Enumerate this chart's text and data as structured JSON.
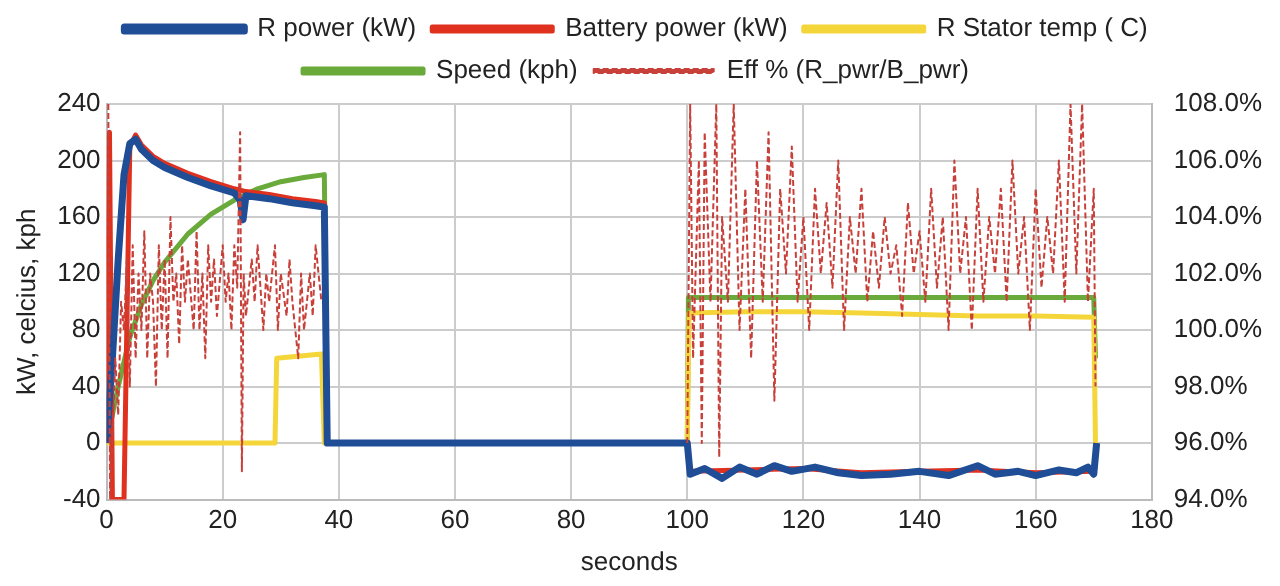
{
  "chart_data": {
    "type": "line",
    "xlabel": "seconds",
    "ylabel": "kW, celcius, kph",
    "xlim": [
      0,
      180
    ],
    "xticks": [
      0,
      20,
      40,
      60,
      80,
      100,
      120,
      140,
      160,
      180
    ],
    "ylim": [
      -40,
      240
    ],
    "yticks": [
      -40,
      0,
      40,
      80,
      120,
      160,
      200,
      240
    ],
    "y2lim": [
      94,
      108
    ],
    "y2ticks": [
      {
        "value": 94,
        "label": "94.0%"
      },
      {
        "value": 96,
        "label": "96.0%"
      },
      {
        "value": 98,
        "label": "98.0%"
      },
      {
        "value": 100,
        "label": "100.0%"
      },
      {
        "value": 102,
        "label": "102.0%"
      },
      {
        "value": 104,
        "label": "104.0%"
      },
      {
        "value": 106,
        "label": "106.0%"
      },
      {
        "value": 108,
        "label": "108.0%"
      }
    ],
    "grid": true,
    "legend": "top",
    "marker": "none",
    "series": [
      {
        "name": "R power (kW)",
        "color": "#1f4e96",
        "line_style": "solid",
        "x": [
          0,
          1,
          2,
          3,
          4,
          5,
          6,
          8,
          10,
          14,
          18,
          22,
          23,
          23.5,
          24,
          28,
          32,
          36,
          37.5,
          38,
          100,
          100.5,
          103,
          106,
          109,
          112,
          115,
          118,
          122,
          126,
          130,
          135,
          140,
          145,
          150,
          153,
          157,
          160,
          164,
          167,
          169,
          170,
          170.5
        ],
        "values": [
          0,
          60,
          130,
          190,
          212,
          215,
          208,
          200,
          195,
          188,
          182,
          177,
          172,
          158,
          175,
          173,
          170,
          168,
          167,
          0,
          0,
          -22,
          -18,
          -25,
          -17,
          -22,
          -16,
          -20,
          -17,
          -21,
          -23,
          -22,
          -20,
          -23,
          -16,
          -22,
          -20,
          -23,
          -19,
          -21,
          -17,
          -22,
          0
        ]
      },
      {
        "name": "Battery power (kW)",
        "color": "#e0301e",
        "line_style": "solid",
        "x": [
          0,
          0.5,
          1,
          3,
          4,
          5,
          6,
          8,
          10,
          14,
          18,
          22,
          24,
          28,
          32,
          36,
          37.5,
          38,
          100,
          100.5,
          110,
          120,
          130,
          140,
          150,
          160,
          170,
          170.5
        ],
        "values": [
          0,
          220,
          -40,
          -40,
          210,
          218,
          211,
          203,
          198,
          191,
          185,
          180,
          178,
          176,
          173,
          171,
          170,
          0,
          0,
          -20,
          -19,
          -18,
          -21,
          -20,
          -19,
          -21,
          -20,
          0
        ]
      },
      {
        "name": "R Stator temp ( C)",
        "color": "#f5d63a",
        "line_style": "solid",
        "x": [
          0,
          29,
          29.3,
          37,
          37.5,
          100,
          100.3,
          110,
          120,
          130,
          140,
          150,
          160,
          170,
          170.3
        ],
        "values": [
          0,
          0,
          60,
          63,
          0,
          0,
          92,
          93,
          93,
          92,
          91,
          90,
          90,
          89,
          0
        ]
      },
      {
        "name": "Speed (kph)",
        "color": "#6aaa3a",
        "line_style": "solid",
        "x": [
          0,
          2,
          4,
          6,
          8,
          10,
          14,
          18,
          22,
          26,
          30,
          34,
          37.5,
          38,
          100,
          100.2,
          170,
          170.3
        ],
        "values": [
          0,
          40,
          75,
          98,
          115,
          128,
          148,
          162,
          172,
          180,
          185,
          188,
          190,
          0,
          0,
          103,
          103,
          60
        ]
      },
      {
        "name": "Eff % (R_pwr/B_pwr)",
        "color": "#c8403a",
        "line_style": "dashed",
        "axis": "y2",
        "x": [
          0.3,
          0.6,
          1,
          1.5,
          2,
          2.5,
          3,
          3.5,
          4,
          4.5,
          5,
          5.5,
          6,
          6.5,
          7,
          7.5,
          8,
          8.5,
          9,
          9.5,
          10,
          10.5,
          11,
          11.5,
          12,
          12.5,
          13,
          13.5,
          14,
          15,
          15.5,
          16,
          16.5,
          17,
          17.5,
          18,
          18.5,
          19,
          20,
          20.5,
          21,
          21.5,
          22,
          22.5,
          23,
          23.3,
          23.6,
          24,
          25,
          25.5,
          26,
          27,
          27.5,
          28,
          29,
          29.5,
          30,
          31,
          31.5,
          32,
          33,
          33.5,
          34,
          35,
          35.5,
          36,
          37,
          38,
          100,
          100.5,
          101,
          102,
          102.5,
          103,
          104,
          105,
          105.5,
          106,
          107,
          108,
          109,
          110,
          111,
          112,
          113,
          114,
          115,
          116,
          117,
          118,
          119,
          120,
          121,
          122,
          123,
          124,
          125,
          126,
          127,
          128,
          129,
          130,
          131,
          132,
          133,
          134,
          135,
          136,
          137,
          138,
          139,
          140,
          141,
          142,
          143,
          144,
          145,
          146,
          147,
          148,
          149,
          150,
          151,
          152,
          153,
          154,
          155,
          156,
          157,
          158,
          159,
          160,
          161,
          162,
          163,
          164,
          165,
          166,
          167,
          168,
          169,
          170,
          170.3
        ],
        "values": [
          108,
          94,
          96,
          99,
          97,
          101,
          100,
          102.5,
          98,
          103,
          99,
          102,
          100,
          103.5,
          99,
          102,
          101,
          98,
          103,
          100,
          102.5,
          99,
          104,
          101,
          102,
          99.5,
          103,
          101,
          102.5,
          100,
          103.5,
          100,
          102,
          99,
          103,
          101,
          102.5,
          100.5,
          103,
          101,
          102,
          100,
          103,
          101.5,
          107,
          95,
          102,
          100.5,
          102.5,
          101,
          103,
          100,
          102,
          101,
          103,
          100,
          102,
          100.5,
          102.5,
          101,
          99,
          102,
          100,
          102,
          100.5,
          103,
          101,
          null,
          96,
          108,
          99,
          106,
          96,
          107,
          101,
          108,
          95.5,
          104,
          101,
          108,
          100,
          105,
          99,
          106,
          101,
          107,
          97.5,
          105,
          102,
          106.5,
          101,
          104,
          100,
          105,
          102,
          104.5,
          101.5,
          106,
          100,
          104,
          102,
          105,
          101,
          103.5,
          101.5,
          104,
          102,
          103,
          100.5,
          104.5,
          102,
          103.5,
          101,
          105,
          101.5,
          104,
          100,
          106,
          102,
          104,
          100,
          105,
          101,
          104,
          102,
          105,
          101,
          106,
          102,
          104,
          100,
          105,
          101.5,
          104,
          102,
          106,
          101,
          108,
          102,
          108,
          101,
          105,
          98
        ]
      }
    ]
  }
}
